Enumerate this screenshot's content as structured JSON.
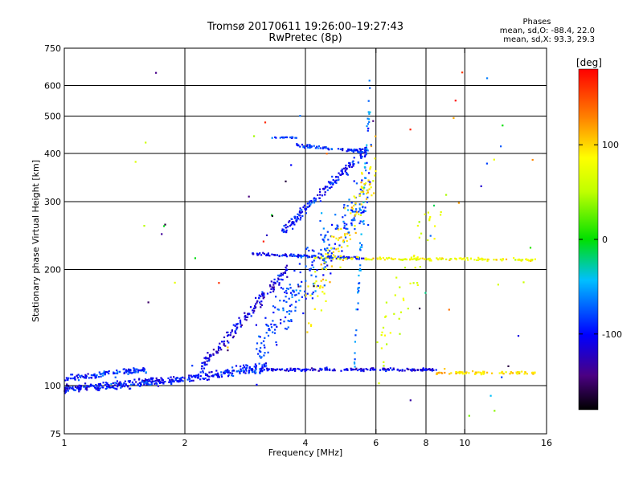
{
  "chart_data": {
    "type": "scatter",
    "title_line1": "Tromsø 20170611 19:26:00–19:27:43",
    "title_line2": "RwPretec (8p)",
    "stats_heading": "Phases",
    "stats_line1": "mean, sd,O: -88.4, 22.0",
    "stats_line2": "mean, sd,X:  93.3, 29.3",
    "xlabel": "Frequency [MHz]",
    "ylabel": "Stationary phase Virtual Height [km]",
    "x_scale": "log",
    "y_scale": "log",
    "xlim": [
      1,
      16
    ],
    "ylim": [
      75,
      750
    ],
    "x_ticks": [
      1,
      2,
      4,
      6,
      8,
      10,
      16
    ],
    "x_tick_labels": [
      "1",
      "2",
      "4",
      "6",
      "8",
      "10",
      "16"
    ],
    "x_gridlines": [
      2,
      4,
      6,
      8,
      10
    ],
    "y_ticks": [
      75,
      100,
      200,
      300,
      400,
      500,
      600,
      750
    ],
    "y_tick_labels": [
      "75",
      "100",
      "200",
      "300",
      "400",
      "500",
      "600",
      "750"
    ],
    "y_gridlines": [
      100,
      200,
      300,
      400,
      500,
      600
    ],
    "grid": true,
    "colorbar": {
      "label": "[deg]",
      "min": -180,
      "max": 180,
      "ticks": [
        100,
        0,
        -100
      ],
      "tick_labels": [
        "100",
        "0",
        "-100"
      ]
    },
    "traces": [
      {
        "name": "trace-low-o",
        "x": [
          1.0,
          2.0
        ],
        "y": [
          98,
          104
        ],
        "phase": -100,
        "count": 260,
        "scatter": 0.035
      },
      {
        "name": "trace-low-o-upper",
        "x": [
          1.0,
          1.6
        ],
        "y": [
          104,
          110
        ],
        "phase": -90,
        "count": 120,
        "scatter": 0.03
      },
      {
        "name": "trace-rise",
        "x": [
          2.0,
          3.2
        ],
        "y": [
          104,
          112
        ],
        "phase": -95,
        "count": 150,
        "scatter": 0.04
      },
      {
        "name": "trace-ramp",
        "x": [
          2.2,
          3.6
        ],
        "y": [
          112,
          200
        ],
        "phase": -110,
        "count": 160,
        "scatter": 0.06
      },
      {
        "name": "trace-flat-110",
        "x": [
          3.2,
          8.5
        ],
        "y": [
          110,
          110
        ],
        "phase": -105,
        "count": 180,
        "scatter": 0.012
      },
      {
        "name": "trace-e-layer",
        "x": [
          2.9,
          5.6
        ],
        "y": [
          220,
          214
        ],
        "phase": -100,
        "count": 110,
        "scatter": 0.012
      },
      {
        "name": "trace-e-layer-x",
        "x": [
          4.2,
          15.0
        ],
        "y": [
          214,
          212
        ],
        "phase": 80,
        "count": 150,
        "scatter": 0.012
      },
      {
        "name": "trace-f-riser",
        "x": [
          3.5,
          5.7
        ],
        "y": [
          250,
          410
        ],
        "phase": -95,
        "count": 170,
        "scatter": 0.05
      },
      {
        "name": "trace-f-400",
        "x": [
          3.8,
          5.7
        ],
        "y": [
          420,
          405
        ],
        "phase": -90,
        "count": 80,
        "scatter": 0.015
      },
      {
        "name": "trace-f-440",
        "x": [
          3.3,
          3.8
        ],
        "y": [
          440,
          440
        ],
        "phase": -80,
        "count": 20,
        "scatter": 0.005
      },
      {
        "name": "trace-high-x",
        "x": [
          8.5,
          15.0
        ],
        "y": [
          108,
          108
        ],
        "phase": 100,
        "count": 80,
        "scatter": 0.012
      },
      {
        "name": "trace-spread-main",
        "x": [
          3.0,
          5.8
        ],
        "y": [
          120,
          330
        ],
        "phase": -80,
        "count": 260,
        "scatter": 0.25
      },
      {
        "name": "trace-spread-x",
        "x": [
          4.0,
          6.0
        ],
        "y": [
          150,
          380
        ],
        "phase": 90,
        "count": 110,
        "scatter": 0.25
      },
      {
        "name": "trace-cusp-6",
        "x": [
          5.3,
          5.8
        ],
        "y": [
          120,
          560
        ],
        "phase": -60,
        "count": 60,
        "scatter": 0.2
      },
      {
        "name": "trace-mid-x",
        "x": [
          6.0,
          9.0
        ],
        "y": [
          115,
          320
        ],
        "phase": 70,
        "count": 50,
        "scatter": 0.3
      },
      {
        "name": "trace-noise",
        "x": [
          1.5,
          15.5
        ],
        "y": [
          80,
          650
        ],
        "phase": 0,
        "count": 60,
        "scatter": 1.0
      }
    ]
  }
}
